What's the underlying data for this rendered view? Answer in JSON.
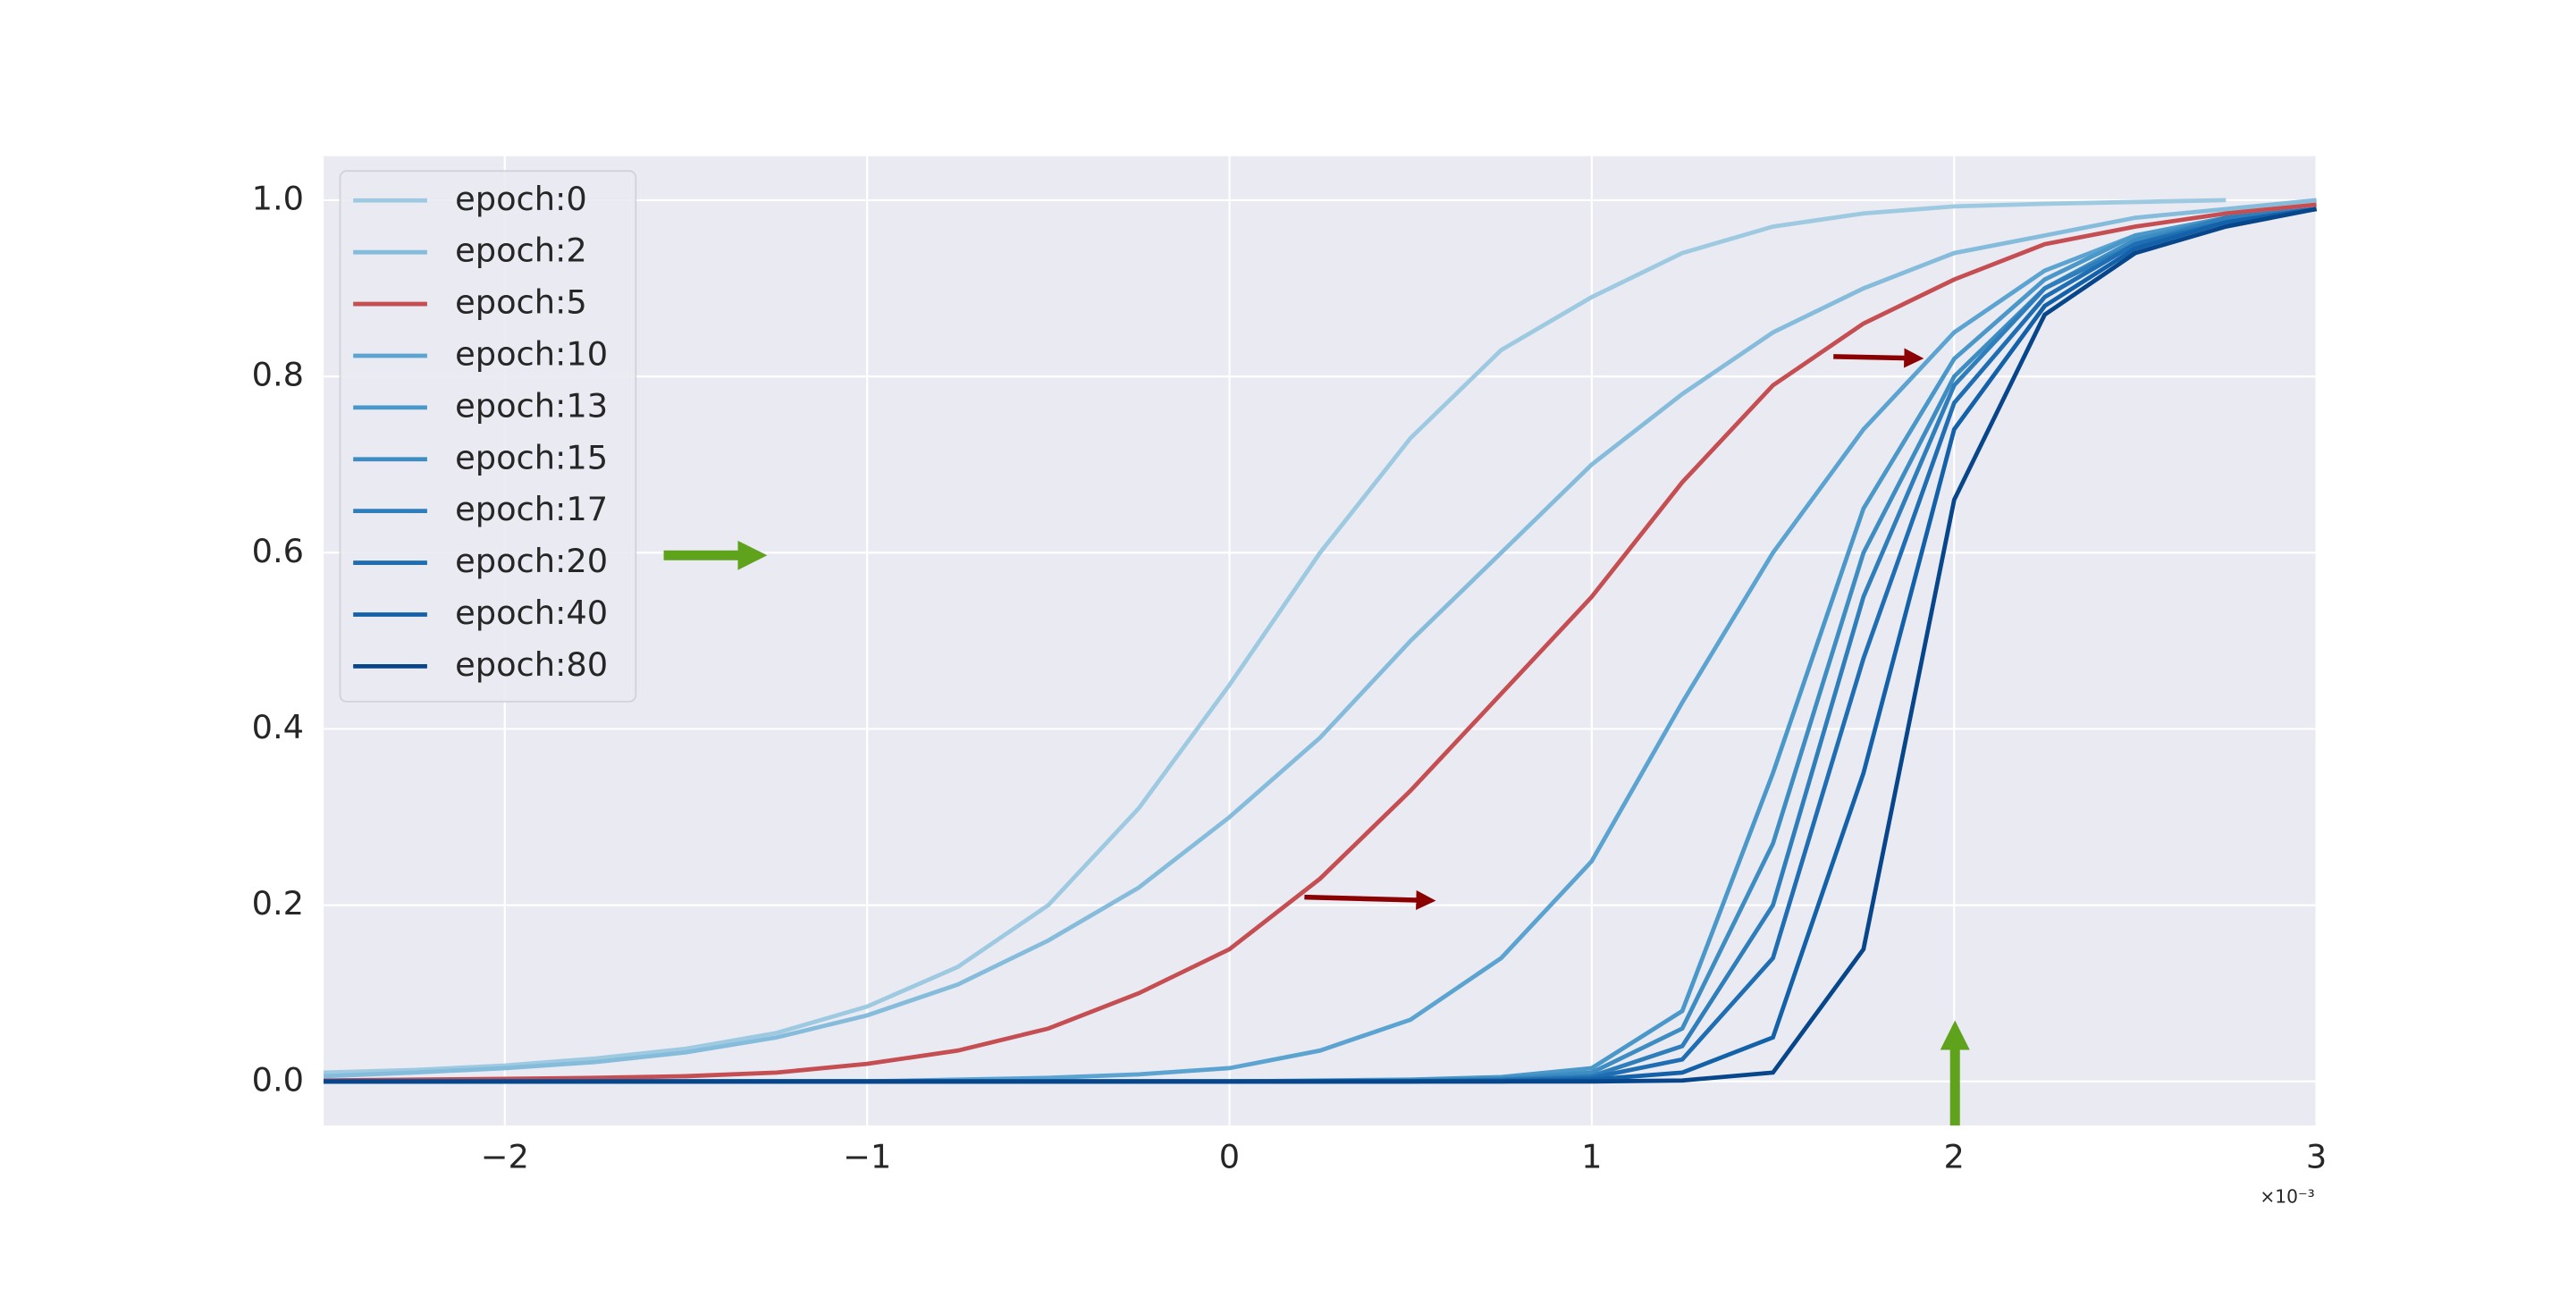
{
  "chart_data": {
    "type": "line",
    "x_offset_label": "×10⁻³",
    "x": [
      -2.5,
      -2.25,
      -2,
      -1.75,
      -1.5,
      -1.25,
      -1,
      -0.75,
      -0.5,
      -0.25,
      0,
      0.25,
      0.5,
      0.75,
      1,
      1.25,
      1.5,
      1.75,
      2,
      2.25,
      2.5,
      2.75,
      3
    ],
    "xlim": [
      -2.5,
      3
    ],
    "xticks": [
      {
        "value": -2,
        "label": "−2"
      },
      {
        "value": -1,
        "label": "−1"
      },
      0,
      1,
      2,
      3
    ],
    "ylim": [
      -0.05,
      1.05
    ],
    "yticks": [
      {
        "value": 0,
        "label": "0.0"
      },
      0.2,
      0.4,
      0.6,
      0.8,
      {
        "value": 1,
        "label": "1.0"
      }
    ],
    "grid": true,
    "legend": "upper left",
    "series": [
      {
        "name": "epoch:0",
        "color": "#9ecae1",
        "values": [
          0.01,
          0.013,
          0.018,
          0.026,
          0.037,
          0.055,
          0.085,
          0.13,
          0.2,
          0.31,
          0.45,
          0.6,
          0.73,
          0.83,
          0.89,
          0.94,
          0.97,
          0.985,
          0.993,
          0.996,
          0.998,
          1.0,
          null
        ]
      },
      {
        "name": "epoch:2",
        "color": "#85bcdb",
        "values": [
          0.006,
          0.01,
          0.015,
          0.022,
          0.033,
          0.05,
          0.075,
          0.11,
          0.16,
          0.22,
          0.3,
          0.39,
          0.5,
          0.6,
          0.7,
          0.78,
          0.85,
          0.9,
          0.94,
          0.96,
          0.98,
          0.99,
          1.0
        ]
      },
      {
        "name": "epoch:5",
        "color": "#c44e52",
        "values": [
          0.001,
          0.002,
          0.003,
          0.004,
          0.006,
          0.01,
          0.02,
          0.035,
          0.06,
          0.1,
          0.15,
          0.23,
          0.33,
          0.44,
          0.55,
          0.68,
          0.79,
          0.86,
          0.91,
          0.95,
          0.97,
          0.985,
          0.995
        ]
      },
      {
        "name": "epoch:10",
        "color": "#5ba3d0",
        "values": [
          0,
          0,
          0,
          0,
          0,
          0,
          0,
          0.002,
          0.004,
          0.008,
          0.015,
          0.035,
          0.07,
          0.14,
          0.25,
          0.43,
          0.6,
          0.74,
          0.85,
          0.92,
          0.96,
          0.98,
          0.99
        ]
      },
      {
        "name": "epoch:13",
        "color": "#4a98c9",
        "values": [
          0,
          0,
          0,
          0,
          0,
          0,
          0,
          0,
          0,
          0,
          0,
          0.001,
          0.002,
          0.005,
          0.015,
          0.08,
          0.35,
          0.65,
          0.82,
          0.91,
          0.96,
          0.98,
          0.99
        ]
      },
      {
        "name": "epoch:15",
        "color": "#3d8dc3",
        "values": [
          0,
          0,
          0,
          0,
          0,
          0,
          0,
          0,
          0,
          0,
          0,
          0,
          0.001,
          0.003,
          0.01,
          0.06,
          0.27,
          0.6,
          0.8,
          0.9,
          0.955,
          0.98,
          0.99
        ]
      },
      {
        "name": "epoch:17",
        "color": "#2e7ebc",
        "values": [
          0,
          0,
          0,
          0,
          0,
          0,
          0,
          0,
          0,
          0,
          0,
          0,
          0,
          0.002,
          0.006,
          0.04,
          0.2,
          0.55,
          0.79,
          0.9,
          0.95,
          0.98,
          0.99
        ]
      },
      {
        "name": "epoch:20",
        "color": "#1f6eb3",
        "values": [
          0,
          0,
          0,
          0,
          0,
          0,
          0,
          0,
          0,
          0,
          0,
          0,
          0,
          0.001,
          0.004,
          0.025,
          0.14,
          0.48,
          0.77,
          0.89,
          0.95,
          0.975,
          0.99
        ]
      },
      {
        "name": "epoch:40",
        "color": "#1361a9",
        "values": [
          0,
          0,
          0,
          0,
          0,
          0,
          0,
          0,
          0,
          0,
          0,
          0,
          0,
          0,
          0.002,
          0.01,
          0.05,
          0.35,
          0.74,
          0.88,
          0.945,
          0.975,
          0.99
        ]
      },
      {
        "name": "epoch:80",
        "color": "#08468b",
        "values": [
          0,
          0,
          0,
          0,
          0,
          0,
          0,
          0,
          0,
          0,
          0,
          0,
          0,
          0,
          0,
          0.001,
          0.01,
          0.15,
          0.66,
          0.87,
          0.94,
          0.97,
          0.99
        ]
      }
    ]
  }
}
